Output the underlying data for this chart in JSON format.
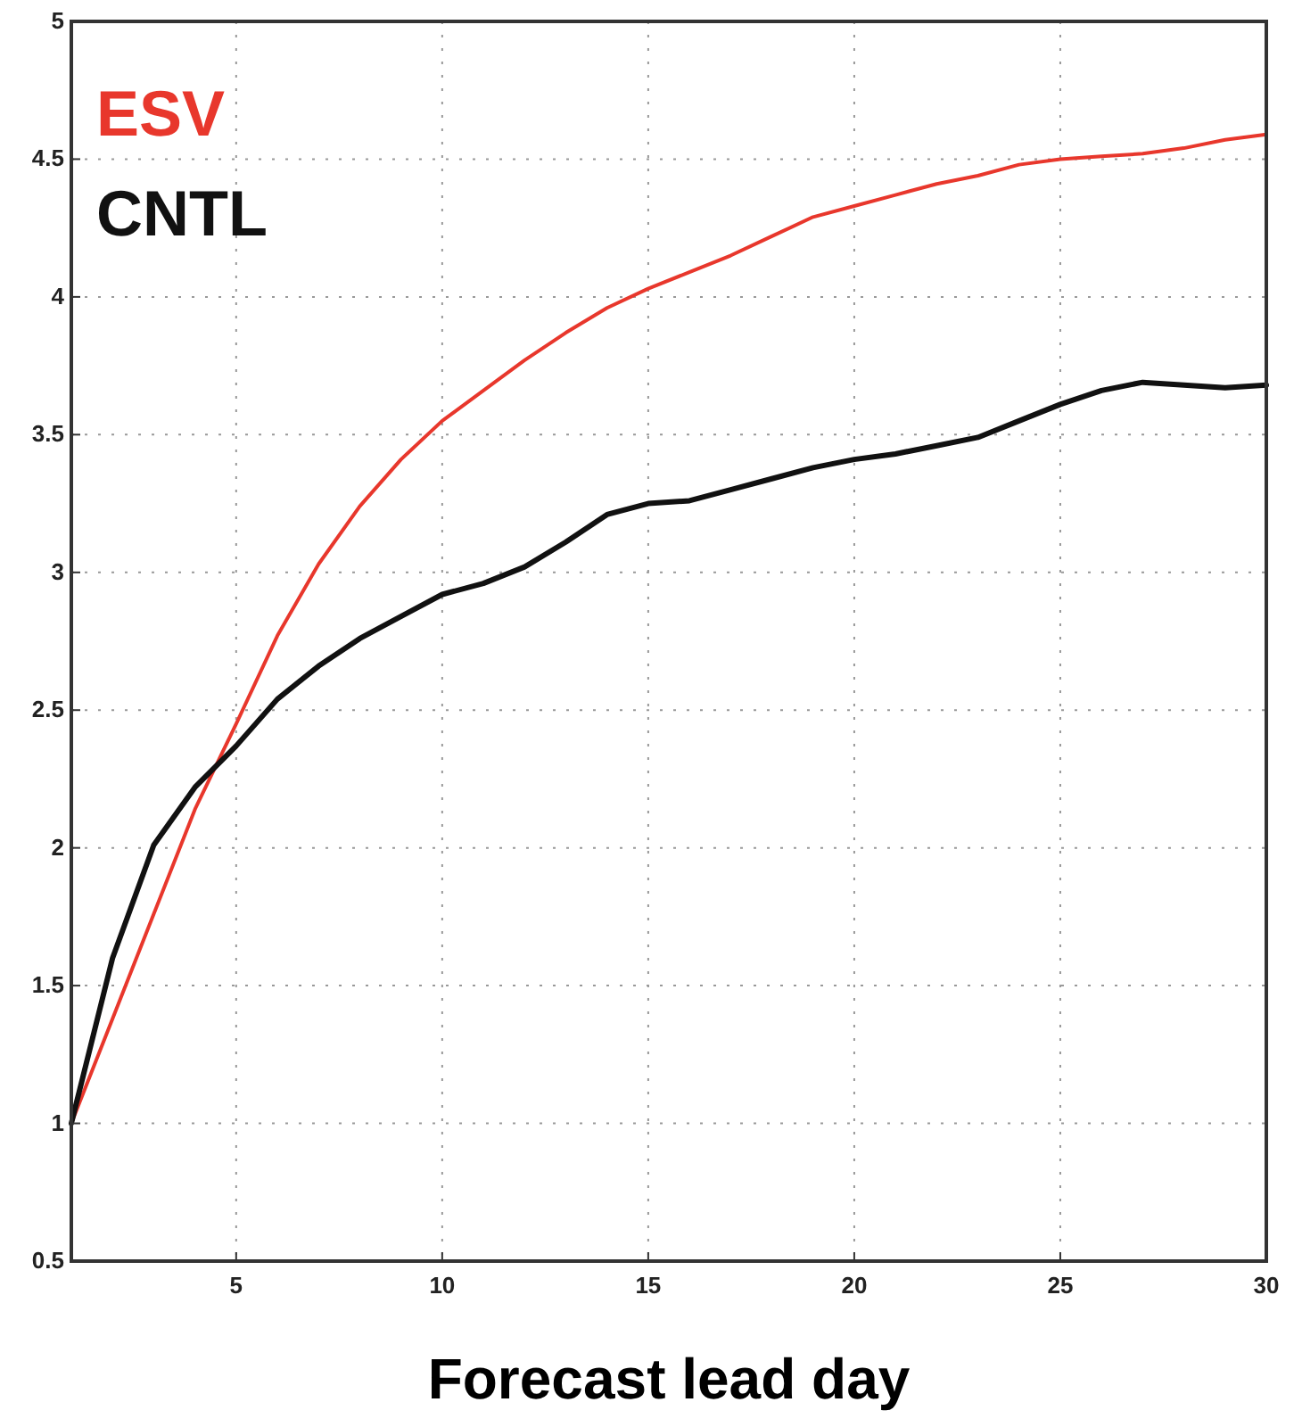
{
  "chart_data": {
    "type": "line",
    "xlabel": "Forecast lead day",
    "x": [
      1,
      2,
      3,
      4,
      5,
      6,
      7,
      8,
      9,
      10,
      11,
      12,
      13,
      14,
      15,
      16,
      17,
      18,
      19,
      20,
      21,
      22,
      23,
      24,
      25,
      26,
      27,
      28,
      29,
      30
    ],
    "series": [
      {
        "name": "ESV",
        "color": "#e8372c",
        "values": [
          1.0,
          1.38,
          1.76,
          2.14,
          2.45,
          2.77,
          3.03,
          3.24,
          3.41,
          3.55,
          3.66,
          3.77,
          3.87,
          3.96,
          4.03,
          4.09,
          4.15,
          4.22,
          4.29,
          4.33,
          4.37,
          4.41,
          4.44,
          4.48,
          4.5,
          4.51,
          4.52,
          4.54,
          4.57,
          4.59
        ]
      },
      {
        "name": "CNTL",
        "color": "#111111",
        "values": [
          1.0,
          1.6,
          2.01,
          2.22,
          2.37,
          2.54,
          2.66,
          2.76,
          2.84,
          2.92,
          2.96,
          3.02,
          3.11,
          3.21,
          3.25,
          3.26,
          3.3,
          3.34,
          3.38,
          3.41,
          3.43,
          3.46,
          3.49,
          3.55,
          3.61,
          3.66,
          3.69,
          3.68,
          3.67,
          3.68
        ]
      }
    ],
    "xlim": [
      1,
      30
    ],
    "xticks": [
      5,
      10,
      15,
      20,
      25,
      30
    ],
    "ylim": [
      0.5,
      5
    ],
    "yticks": [
      0.5,
      1,
      1.5,
      2,
      2.5,
      3,
      3.5,
      4,
      4.5,
      5
    ],
    "grid": true,
    "legend": "top left",
    "line_style": "solid",
    "marker": "none"
  }
}
